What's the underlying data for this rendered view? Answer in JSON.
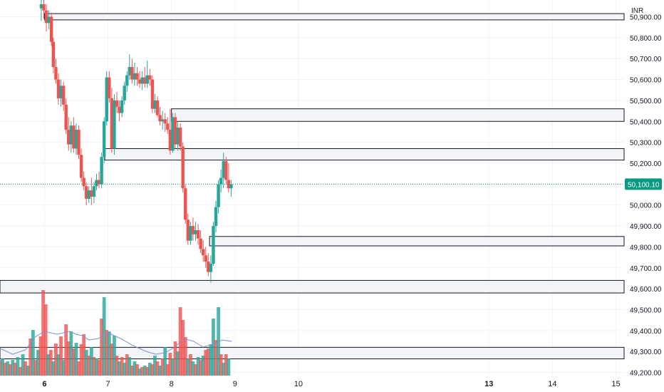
{
  "currency": "INR",
  "chart_data": {
    "type": "candlestick",
    "y_axis": {
      "min": 49185,
      "max": 50980,
      "ticks": [
        50900,
        50800,
        50700,
        50600,
        50500,
        50400,
        50300,
        50200,
        50000,
        49900,
        49800,
        49700,
        49600,
        49500,
        49400,
        49300,
        49200
      ],
      "tick_labels": [
        "50,900.00",
        "50,800.00",
        "50,700.00",
        "50,600.00",
        "50,500.00",
        "50,400.00",
        "50,300.00",
        "50,200.00",
        "50,000.00",
        "49,900.00",
        "49,800.00",
        "49,700.00",
        "49,600.00",
        "49,500.00",
        "49,400.00",
        "49,300.00",
        "49,200.00"
      ]
    },
    "x_axis": {
      "min": 5.3,
      "max": 15.05,
      "ticks": [
        6,
        7,
        8,
        9,
        10,
        13,
        14,
        15
      ],
      "tick_labels": [
        "6",
        "7",
        "8",
        "9",
        "10",
        "13",
        "14",
        "15"
      ],
      "bold_ticks": [
        "6",
        "13"
      ]
    },
    "last_price": {
      "value": 50100.1,
      "label": "50,100.10",
      "color": "#089981"
    },
    "colors": {
      "up": "#26a69a",
      "down": "#ef5350",
      "up_volume": "#26a69a",
      "down_volume": "#ef5350",
      "volume_ma": "#7e8fd4",
      "grid": "#f0f3fa",
      "zone_fill": "#f3f4f7",
      "zone_border": "#131722"
    },
    "zones": [
      {
        "top": 50915,
        "bottom": 50885,
        "x_start": 6.0
      },
      {
        "top": 50460,
        "bottom": 50400,
        "x_start": 8.0
      },
      {
        "top": 50270,
        "bottom": 50215,
        "x_start": 6.95
      },
      {
        "top": 49850,
        "bottom": 49805,
        "x_start": 8.6
      },
      {
        "top": 49640,
        "bottom": 49580,
        "x_start": 5.3
      },
      {
        "top": 49320,
        "bottom": 49265,
        "x_start": 5.3
      }
    ],
    "candles": [
      [
        5.95,
        50940,
        50990,
        50880,
        50960
      ],
      [
        5.99,
        50960,
        50980,
        50890,
        50930
      ],
      [
        6.03,
        50930,
        50960,
        50830,
        50870
      ],
      [
        6.07,
        50870,
        50930,
        50840,
        50900
      ],
      [
        6.11,
        50900,
        50920,
        50760,
        50780
      ],
      [
        6.14,
        50780,
        50800,
        50630,
        50660
      ],
      [
        6.18,
        50660,
        50700,
        50580,
        50600
      ],
      [
        6.22,
        50600,
        50630,
        50480,
        50510
      ],
      [
        6.26,
        50510,
        50600,
        50470,
        50570
      ],
      [
        6.3,
        50570,
        50590,
        50450,
        50480
      ],
      [
        6.34,
        50480,
        50510,
        50340,
        50360
      ],
      [
        6.38,
        50360,
        50420,
        50260,
        50290
      ],
      [
        6.42,
        50290,
        50400,
        50250,
        50380
      ],
      [
        6.46,
        50380,
        50420,
        50250,
        50270
      ],
      [
        6.5,
        50270,
        50390,
        50240,
        50360
      ],
      [
        6.54,
        50360,
        50380,
        50220,
        50240
      ],
      [
        6.58,
        50240,
        50270,
        50110,
        50130
      ],
      [
        6.62,
        50130,
        50160,
        50070,
        50090
      ],
      [
        6.66,
        50090,
        50110,
        50000,
        50030
      ],
      [
        6.7,
        50030,
        50090,
        50010,
        50070
      ],
      [
        6.74,
        50070,
        50130,
        50000,
        50040
      ],
      [
        6.78,
        50040,
        50110,
        50010,
        50090
      ],
      [
        6.82,
        50090,
        50150,
        50070,
        50120
      ],
      [
        6.86,
        50120,
        50160,
        50080,
        50100
      ],
      [
        6.9,
        50100,
        50250,
        50080,
        50230
      ],
      [
        6.94,
        50230,
        50420,
        50200,
        50400
      ],
      [
        6.98,
        50400,
        50640,
        50380,
        50610
      ],
      [
        7.02,
        50610,
        50640,
        50490,
        50510
      ],
      [
        7.06,
        50510,
        50560,
        50250,
        50270
      ],
      [
        7.1,
        50270,
        50530,
        50240,
        50500
      ],
      [
        7.14,
        50500,
        50540,
        50440,
        50470
      ],
      [
        7.18,
        50470,
        50500,
        50400,
        50440
      ],
      [
        7.22,
        50440,
        50520,
        50420,
        50500
      ],
      [
        7.26,
        50500,
        50590,
        50480,
        50570
      ],
      [
        7.3,
        50570,
        50640,
        50540,
        50620
      ],
      [
        7.34,
        50620,
        50720,
        50600,
        50660
      ],
      [
        7.38,
        50660,
        50700,
        50580,
        50600
      ],
      [
        7.42,
        50600,
        50680,
        50570,
        50630
      ],
      [
        7.46,
        50630,
        50660,
        50570,
        50600
      ],
      [
        7.5,
        50600,
        50640,
        50560,
        50580
      ],
      [
        7.54,
        50580,
        50640,
        50550,
        50610
      ],
      [
        7.58,
        50610,
        50660,
        50560,
        50580
      ],
      [
        7.62,
        50580,
        50690,
        50560,
        50620
      ],
      [
        7.66,
        50620,
        50650,
        50570,
        50600
      ],
      [
        7.7,
        50600,
        50620,
        50440,
        50460
      ],
      [
        7.74,
        50460,
        50530,
        50440,
        50500
      ],
      [
        7.78,
        50500,
        50520,
        50420,
        50430
      ],
      [
        7.82,
        50430,
        50470,
        50380,
        50400
      ],
      [
        7.86,
        50400,
        50450,
        50360,
        50410
      ],
      [
        7.9,
        50410,
        50440,
        50350,
        50390
      ],
      [
        7.94,
        50390,
        50420,
        50340,
        50360
      ],
      [
        7.98,
        50360,
        50460,
        50240,
        50260
      ],
      [
        8.02,
        50260,
        50440,
        50250,
        50420
      ],
      [
        8.06,
        50420,
        50440,
        50270,
        50290
      ],
      [
        8.1,
        50290,
        50400,
        50260,
        50370
      ],
      [
        8.14,
        50370,
        50390,
        50260,
        50280
      ],
      [
        8.18,
        50280,
        50300,
        50060,
        50080
      ],
      [
        8.22,
        50080,
        50100,
        49910,
        49930
      ],
      [
        8.26,
        49930,
        49960,
        49810,
        49830
      ],
      [
        8.3,
        49830,
        49920,
        49810,
        49900
      ],
      [
        8.34,
        49900,
        49940,
        49830,
        49860
      ],
      [
        8.38,
        49860,
        49920,
        49830,
        49880
      ],
      [
        8.42,
        49880,
        49910,
        49810,
        49840
      ],
      [
        8.46,
        49840,
        49880,
        49770,
        49790
      ],
      [
        8.5,
        49790,
        49830,
        49730,
        49760
      ],
      [
        8.54,
        49760,
        49800,
        49700,
        49730
      ],
      [
        8.58,
        49730,
        49770,
        49660,
        49680
      ],
      [
        8.62,
        49680,
        49760,
        49630,
        49720
      ],
      [
        8.66,
        49720,
        49920,
        49710,
        49900
      ],
      [
        8.7,
        49900,
        50020,
        49870,
        49990
      ],
      [
        8.74,
        49990,
        50120,
        49960,
        50100
      ],
      [
        8.78,
        50100,
        50170,
        50060,
        50130
      ],
      [
        8.82,
        50130,
        50250,
        50080,
        50210
      ],
      [
        8.86,
        50210,
        50230,
        50100,
        50120
      ],
      [
        8.9,
        50120,
        50200,
        50060,
        50080
      ],
      [
        8.94,
        50080,
        50120,
        50040,
        50100
      ]
    ],
    "volume": {
      "base": 49250,
      "scale_per_unit": 1.0,
      "bars": [
        [
          5.3,
          22,
          0
        ],
        [
          5.34,
          24,
          1
        ],
        [
          5.38,
          18,
          0
        ],
        [
          5.42,
          20,
          1
        ],
        [
          5.46,
          16,
          0
        ],
        [
          5.5,
          22,
          1
        ],
        [
          5.54,
          18,
          0
        ],
        [
          5.58,
          26,
          1
        ],
        [
          5.62,
          12,
          0
        ],
        [
          5.66,
          30,
          1
        ],
        [
          5.7,
          20,
          0
        ],
        [
          5.74,
          14,
          1
        ],
        [
          5.78,
          52,
          0
        ],
        [
          5.82,
          64,
          1
        ],
        [
          5.86,
          22,
          0
        ],
        [
          5.9,
          36,
          1
        ],
        [
          5.94,
          55,
          0
        ],
        [
          5.98,
          120,
          0
        ],
        [
          6.02,
          100,
          0
        ],
        [
          6.06,
          30,
          1
        ],
        [
          6.1,
          36,
          0
        ],
        [
          6.14,
          20,
          1
        ],
        [
          6.18,
          45,
          0
        ],
        [
          6.22,
          30,
          1
        ],
        [
          6.26,
          55,
          0
        ],
        [
          6.3,
          22,
          1
        ],
        [
          6.34,
          72,
          0
        ],
        [
          6.38,
          48,
          0
        ],
        [
          6.42,
          62,
          1
        ],
        [
          6.46,
          38,
          0
        ],
        [
          6.5,
          46,
          1
        ],
        [
          6.54,
          20,
          0
        ],
        [
          6.58,
          44,
          0
        ],
        [
          6.62,
          58,
          0
        ],
        [
          6.66,
          36,
          1
        ],
        [
          6.7,
          28,
          0
        ],
        [
          6.74,
          40,
          1
        ],
        [
          6.78,
          26,
          0
        ],
        [
          6.82,
          24,
          1
        ],
        [
          6.86,
          22,
          0
        ],
        [
          6.9,
          80,
          0
        ],
        [
          6.94,
          110,
          1
        ],
        [
          6.98,
          64,
          0
        ],
        [
          7.02,
          62,
          1
        ],
        [
          7.06,
          45,
          0
        ],
        [
          7.1,
          56,
          1
        ],
        [
          7.14,
          28,
          0
        ],
        [
          7.18,
          20,
          1
        ],
        [
          7.22,
          26,
          0
        ],
        [
          7.26,
          18,
          1
        ],
        [
          7.3,
          30,
          0
        ],
        [
          7.34,
          26,
          1
        ],
        [
          7.38,
          14,
          0
        ],
        [
          7.42,
          20,
          1
        ],
        [
          7.46,
          16,
          0
        ],
        [
          7.5,
          10,
          1
        ],
        [
          7.54,
          12,
          0
        ],
        [
          7.58,
          14,
          1
        ],
        [
          7.62,
          12,
          0
        ],
        [
          7.66,
          18,
          1
        ],
        [
          7.7,
          16,
          0
        ],
        [
          7.74,
          28,
          1
        ],
        [
          7.78,
          20,
          0
        ],
        [
          7.82,
          14,
          1
        ],
        [
          7.86,
          24,
          0
        ],
        [
          7.9,
          40,
          1
        ],
        [
          7.94,
          16,
          0
        ],
        [
          7.98,
          32,
          0
        ],
        [
          8.02,
          24,
          1
        ],
        [
          8.06,
          48,
          0
        ],
        [
          8.1,
          34,
          1
        ],
        [
          8.14,
          96,
          0
        ],
        [
          8.18,
          78,
          0
        ],
        [
          8.22,
          54,
          0
        ],
        [
          8.26,
          24,
          1
        ],
        [
          8.3,
          30,
          0
        ],
        [
          8.34,
          20,
          1
        ],
        [
          8.38,
          16,
          0
        ],
        [
          8.42,
          26,
          1
        ],
        [
          8.46,
          22,
          0
        ],
        [
          8.5,
          28,
          1
        ],
        [
          8.54,
          36,
          0
        ],
        [
          8.58,
          38,
          0
        ],
        [
          8.62,
          44,
          1
        ],
        [
          8.66,
          80,
          1
        ],
        [
          8.7,
          50,
          0
        ],
        [
          8.74,
          96,
          1
        ],
        [
          8.78,
          30,
          0
        ],
        [
          8.82,
          18,
          1
        ],
        [
          8.86,
          30,
          0
        ],
        [
          8.9,
          24,
          1
        ]
      ],
      "ma": [
        [
          5.3,
          38
        ],
        [
          5.5,
          30
        ],
        [
          5.7,
          36
        ],
        [
          5.85,
          54
        ],
        [
          6.0,
          62
        ],
        [
          6.2,
          58
        ],
        [
          6.4,
          62
        ],
        [
          6.5,
          58
        ],
        [
          6.6,
          56
        ],
        [
          6.7,
          50
        ],
        [
          6.85,
          52
        ],
        [
          7.0,
          60
        ],
        [
          7.2,
          52
        ],
        [
          7.4,
          42
        ],
        [
          7.6,
          34
        ],
        [
          7.75,
          30
        ],
        [
          7.9,
          32
        ],
        [
          8.05,
          40
        ],
        [
          8.2,
          52
        ],
        [
          8.35,
          48
        ],
        [
          8.5,
          40
        ],
        [
          8.65,
          44
        ],
        [
          8.8,
          50
        ],
        [
          8.95,
          48
        ]
      ]
    }
  }
}
